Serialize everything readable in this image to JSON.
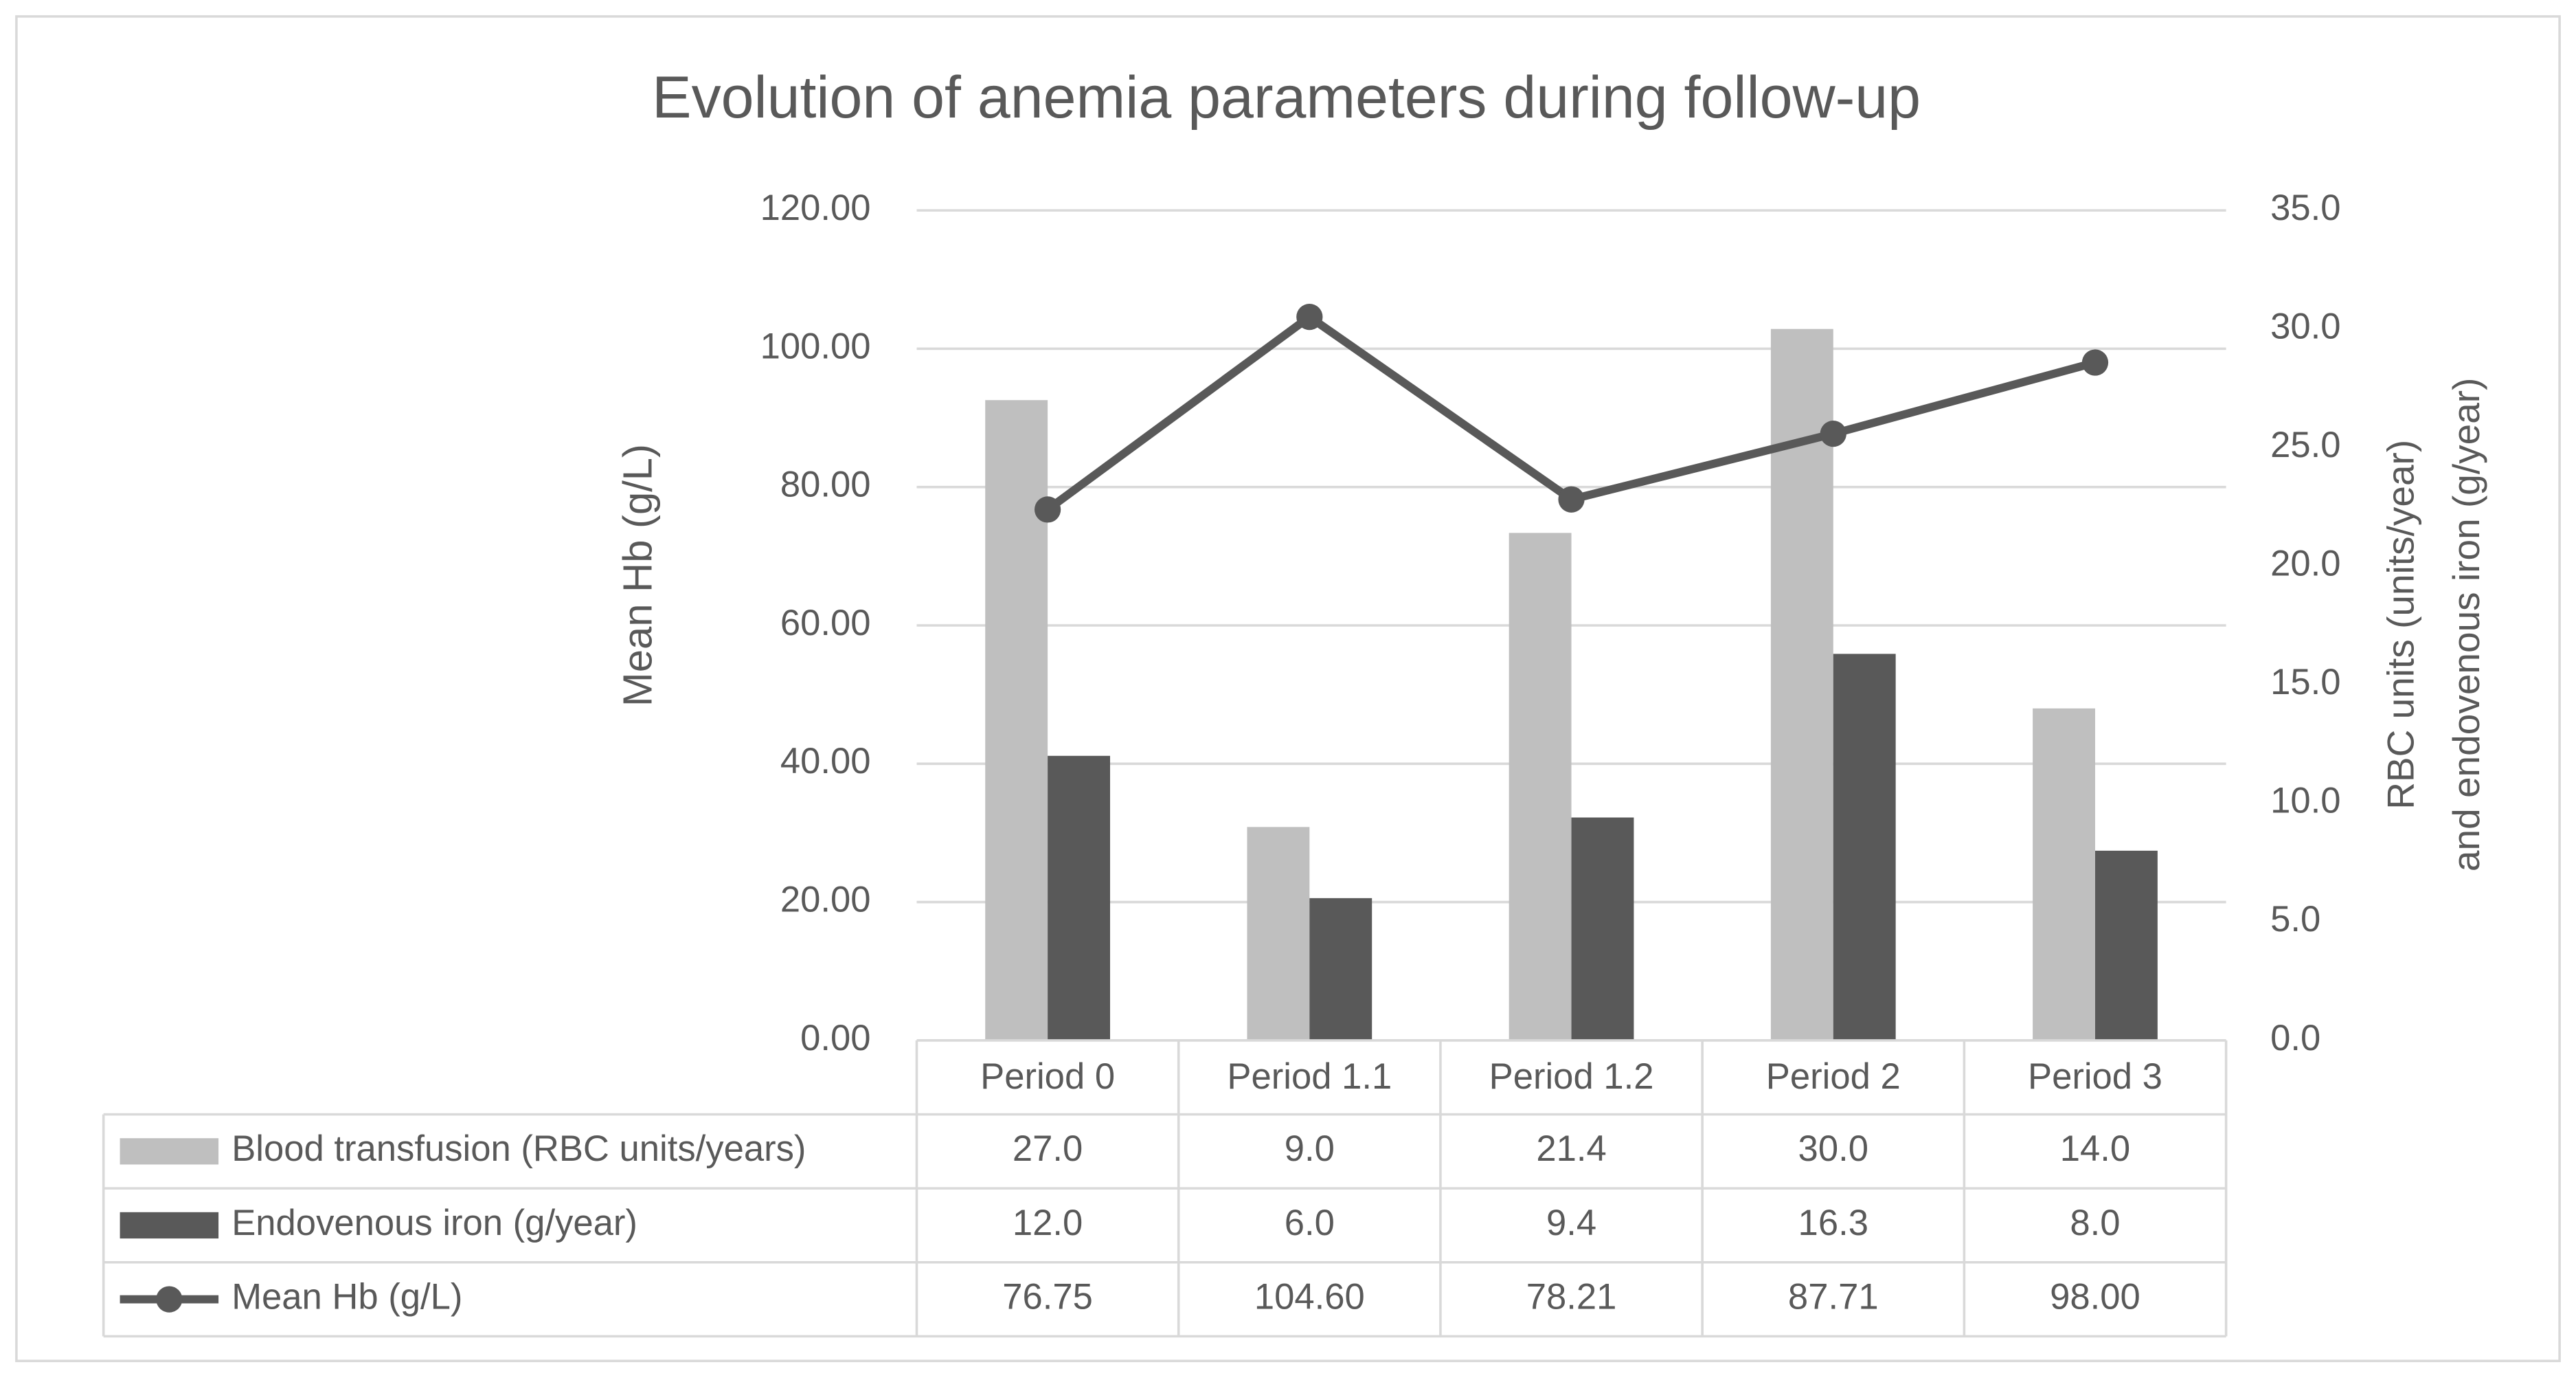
{
  "chart_data": {
    "type": "bar",
    "title": "Evolution of anemia parameters during follow-up",
    "ylabel": "Mean Hb (g/L)",
    "y2label": [
      "RBC units (units/year)",
      "and endovenous iron (g/year)"
    ],
    "categories": [
      "Period 0",
      "Period 1.1",
      "Period 1.2",
      "Period 2",
      "Period 3"
    ],
    "series": [
      {
        "name": "Blood transfusion (RBC units/years)",
        "type": "bar",
        "axis": "y2",
        "color": "#bfbfbf",
        "values": [
          27,
          9,
          21.4,
          30,
          14
        ],
        "value_labels": [
          "27.0",
          "9.0",
          "21.4",
          "30.0",
          "14.0"
        ]
      },
      {
        "name": "Endovenous iron (g/year)",
        "type": "bar",
        "axis": "y2",
        "color": "#595959",
        "values": [
          12,
          6,
          9.4,
          16.3,
          8
        ],
        "value_labels": [
          "12.0",
          "6.0",
          "9.4",
          "16.3",
          "8.0"
        ]
      },
      {
        "name": "Mean Hb (g/L)",
        "type": "line",
        "color": "#595959",
        "values": [
          76.75,
          104.6,
          78.21,
          87.71,
          98
        ],
        "value_labels": [
          "76.75",
          "104.60",
          "78.21",
          "87.71",
          "98.00"
        ]
      }
    ],
    "ylim": [
      0,
      120
    ],
    "yticks": [
      {
        "value": 0,
        "label": "0.00"
      },
      {
        "value": 20,
        "label": "20.00"
      },
      {
        "value": 40,
        "label": "40.00"
      },
      {
        "value": 60,
        "label": "60.00"
      },
      {
        "value": 80,
        "label": "80.00"
      },
      {
        "value": 100,
        "label": "100.00"
      },
      {
        "value": 120,
        "label": "120.00"
      }
    ],
    "y2lim": [
      0,
      35
    ],
    "y2ticks": [
      {
        "value": 0,
        "label": "0.0"
      },
      {
        "value": 5,
        "label": "5.0"
      },
      {
        "value": 10,
        "label": "10.0"
      },
      {
        "value": 15,
        "label": "15.0"
      },
      {
        "value": 20,
        "label": "20.0"
      },
      {
        "value": 25,
        "label": "25.0"
      },
      {
        "value": 30,
        "label": "30.0"
      },
      {
        "value": 35,
        "label": "35.0"
      }
    ],
    "grid": true,
    "data_table": true
  }
}
